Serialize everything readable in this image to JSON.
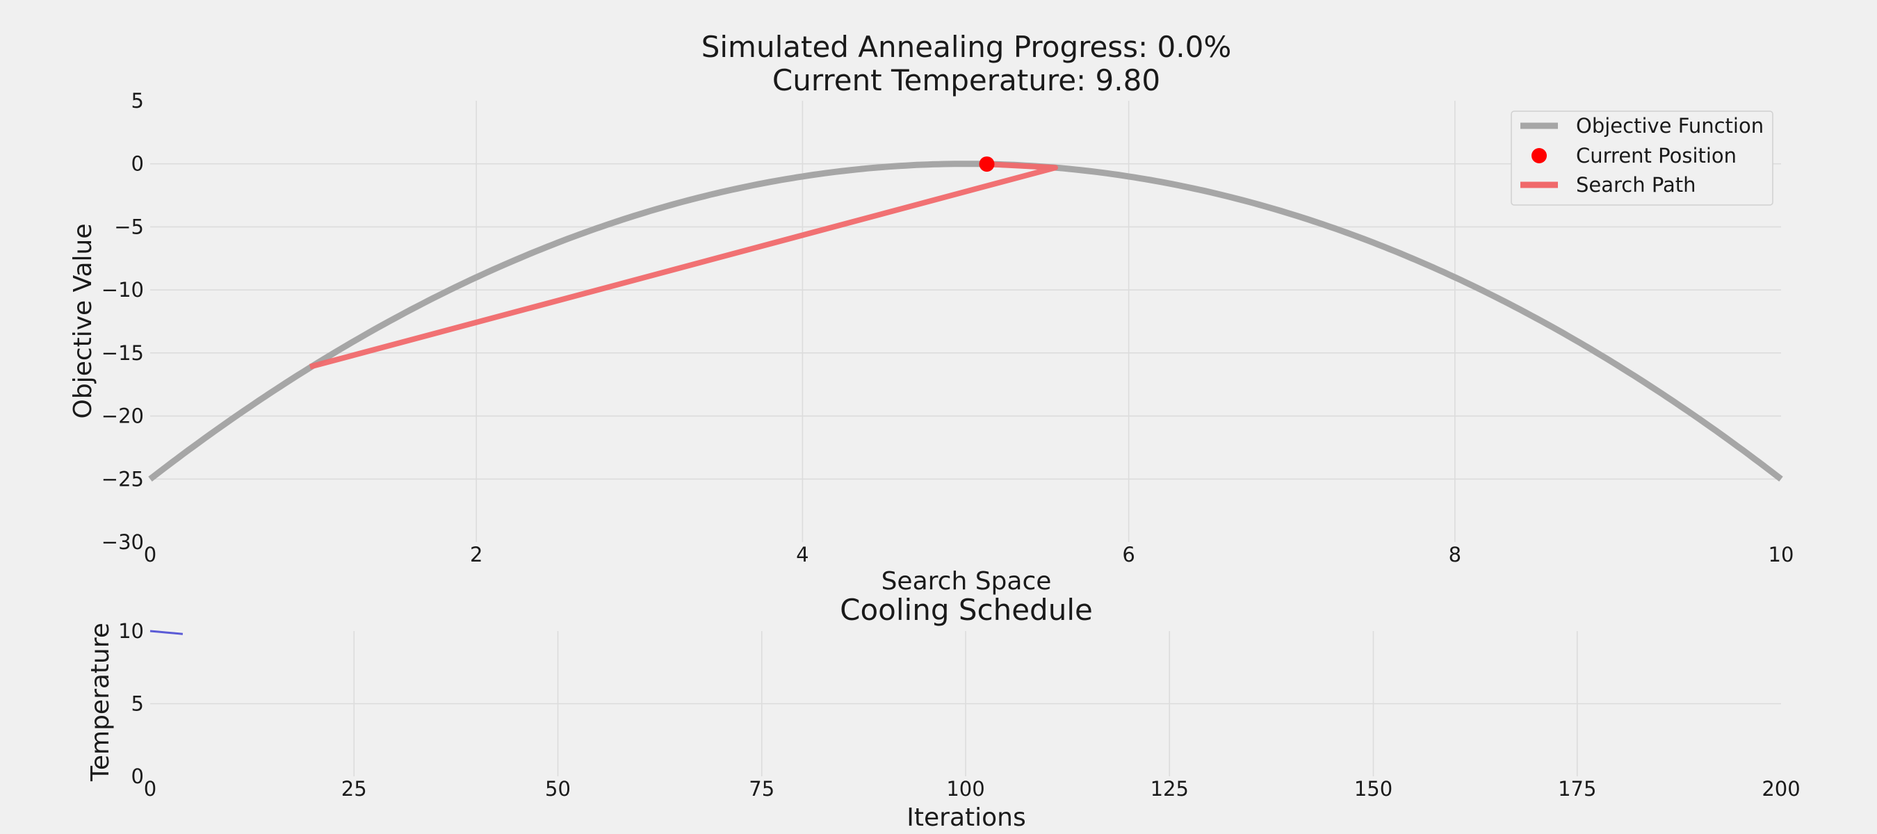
{
  "chart_data": [
    {
      "type": "line",
      "title": "Simulated Annealing Progress: 0.0%",
      "subtitle": "Current Temperature: 9.80",
      "xlabel": "Search Space",
      "ylabel": "Objective Value",
      "xlim": [
        0,
        10
      ],
      "ylim": [
        -30,
        5
      ],
      "xticks": [
        "0",
        "2",
        "4",
        "6",
        "8",
        "10"
      ],
      "yticks": [
        "−30",
        "−25",
        "−20",
        "−15",
        "−10",
        "−5",
        "0",
        "5"
      ],
      "grid": true,
      "legend_placement": "top-right",
      "series": [
        {
          "name": "Objective Function",
          "function": "y = -(x - 5)^2",
          "x_range": [
            0,
            10
          ],
          "color": "#a6a6a6"
        },
        {
          "name": "Current Position",
          "x": [
            5.13
          ],
          "y": [
            -0.02
          ],
          "color": "#ff0000"
        },
        {
          "name": "Search Path",
          "x": [
            5.13,
            5.55,
            0.98
          ],
          "y": [
            -0.02,
            -0.3,
            -16.1
          ],
          "color": "#f0696b"
        }
      ]
    },
    {
      "type": "line",
      "title": "Cooling Schedule",
      "xlabel": "Iterations",
      "ylabel": "Temperature",
      "xlim": [
        0,
        200
      ],
      "ylim": [
        0,
        10
      ],
      "xticks": [
        "0",
        "25",
        "50",
        "75",
        "100",
        "125",
        "150",
        "175",
        "200"
      ],
      "yticks": [
        "0",
        "5",
        "10"
      ],
      "grid": true,
      "series": [
        {
          "x": [
            0,
            1,
            2,
            3,
            4
          ],
          "y": [
            10.0,
            9.95,
            9.9,
            9.85,
            9.8
          ],
          "color": "#5b5bd6"
        }
      ]
    }
  ]
}
